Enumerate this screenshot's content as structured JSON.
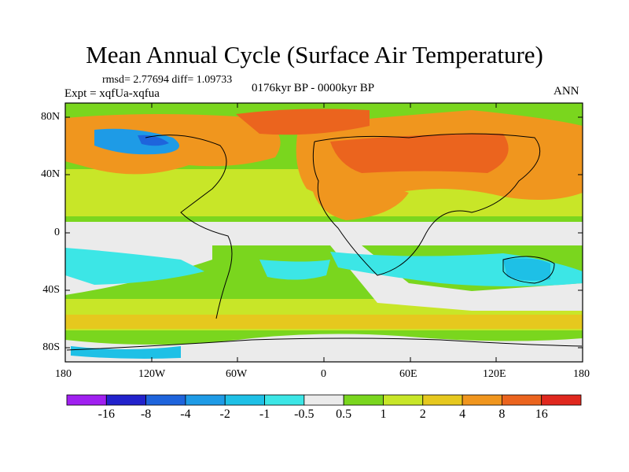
{
  "title": "Mean Annual Cycle (Surface Air Temperature)",
  "stats": "rmsd= 2.77694 diff= 1.09733",
  "expt": "Expt = xqfUa-xqfua",
  "period": "0176kyr BP - 0000kyr BP",
  "season": "ANN",
  "lat_ticks": [
    "80N",
    "40N",
    "0",
    "40S",
    "80S"
  ],
  "lon_ticks": [
    "180",
    "120W",
    "60W",
    "0",
    "60E",
    "120E",
    "180"
  ],
  "colorbar": {
    "labels": [
      "-16",
      "-8",
      "-4",
      "-2",
      "-1",
      "-0.5",
      "0.5",
      "1",
      "2",
      "4",
      "8",
      "16"
    ],
    "colors": [
      "#a020f0",
      "#2222cc",
      "#1e64dc",
      "#1e9be6",
      "#1ec0e6",
      "#3ce6e6",
      "#ebebeb",
      "#7ad61e",
      "#c8e628",
      "#e6c81e",
      "#f0961e",
      "#eb641e",
      "#e0281e"
    ]
  },
  "palette": {
    "neutral": "#ebebeb",
    "warm1": "#7ad61e",
    "warm2": "#c8e628",
    "warm3": "#e6c81e",
    "warm4": "#f0961e",
    "warm5": "#eb641e",
    "cool1": "#3ce6e6",
    "cool2": "#1ec0e6",
    "cool3": "#1e9be6",
    "cool4": "#1e64dc"
  }
}
